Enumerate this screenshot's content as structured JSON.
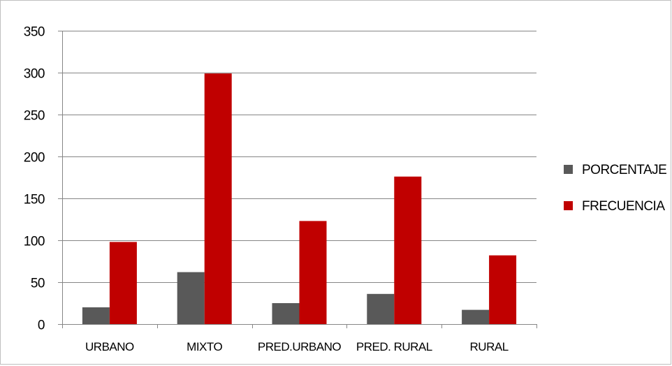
{
  "chart_data": {
    "type": "bar",
    "title": "",
    "xlabel": "",
    "ylabel": "",
    "categories": [
      "URBANO",
      "MIXTO",
      "PRED.URBANO",
      "PRED. RURAL",
      "RURAL"
    ],
    "series": [
      {
        "name": "PORCENTAJE",
        "color": "#595959",
        "values": [
          20,
          62,
          25,
          36,
          17
        ]
      },
      {
        "name": "FRECUENCIA",
        "color": "#c00000",
        "values": [
          98,
          299,
          123,
          176,
          82
        ]
      }
    ],
    "ylim": [
      0,
      350
    ],
    "yticks": [
      0,
      50,
      100,
      150,
      200,
      250,
      300,
      350
    ],
    "grid": true,
    "legend_position": "right"
  }
}
